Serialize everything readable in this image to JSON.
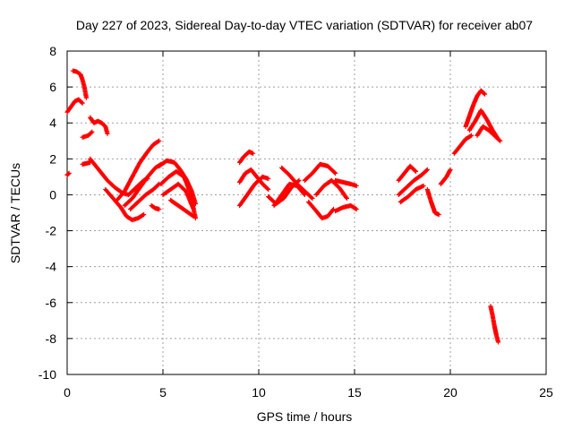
{
  "chart_data": {
    "type": "scatter",
    "title": "Day 227 of 2023, Sidereal Day-to-day VTEC variation (SDTVAR) for receiver ab07",
    "xlabel": "GPS time / hours",
    "ylabel": "SDTVAR / TECUs",
    "xlim": [
      0,
      25
    ],
    "ylim": [
      -10,
      8
    ],
    "xticks": [
      "0",
      "5",
      "10",
      "15",
      "20",
      "25"
    ],
    "yticks": [
      "8",
      "6",
      "4",
      "2",
      "0",
      "-2",
      "-4",
      "-6",
      "-8",
      "-10"
    ],
    "grid": true,
    "marker": "+",
    "color": "#ff0000",
    "series": [
      {
        "name": "s1",
        "x": [
          0.0,
          0.2,
          0.4,
          0.6,
          0.8
        ],
        "y": [
          4.6,
          4.9,
          5.2,
          5.3,
          5.1
        ]
      },
      {
        "name": "s2",
        "x": [
          0.3,
          0.5,
          0.7,
          0.8,
          0.9,
          1.0
        ],
        "y": [
          6.9,
          6.85,
          6.7,
          6.4,
          6.0,
          5.4
        ]
      },
      {
        "name": "s3",
        "x": [
          1.2,
          1.4,
          1.6,
          1.8,
          2.0,
          2.1
        ],
        "y": [
          4.3,
          4.0,
          4.1,
          4.0,
          3.8,
          3.4
        ]
      },
      {
        "name": "s4",
        "x": [
          0.8,
          1.1,
          1.3
        ],
        "y": [
          3.2,
          3.3,
          3.5
        ]
      },
      {
        "name": "s5",
        "x": [
          0.0,
          0.1
        ],
        "y": [
          1.1,
          1.2
        ]
      },
      {
        "name": "s6",
        "x": [
          0.8,
          1.0,
          1.2
        ],
        "y": [
          1.7,
          1.75,
          1.8
        ]
      },
      {
        "name": "s7",
        "x": [
          1.2,
          1.5,
          1.8,
          2.1,
          2.5,
          2.9,
          3.2,
          3.5,
          3.8,
          4.0,
          4.2
        ],
        "y": [
          2.0,
          1.6,
          1.2,
          0.8,
          0.4,
          0.1,
          0.0,
          0.3,
          0.6,
          0.8,
          0.9
        ]
      },
      {
        "name": "s8",
        "x": [
          2.0,
          2.4,
          2.8,
          3.1,
          3.4,
          3.7,
          4.0
        ],
        "y": [
          0.3,
          -0.2,
          -0.7,
          -1.2,
          -1.4,
          -1.3,
          -1.1
        ]
      },
      {
        "name": "s9",
        "x": [
          2.6,
          3.0,
          3.4,
          3.8,
          4.2,
          4.5,
          4.8
        ],
        "y": [
          -0.3,
          0.2,
          1.0,
          1.8,
          2.4,
          2.8,
          3.0
        ]
      },
      {
        "name": "s10",
        "x": [
          3.0,
          3.4,
          3.8,
          4.2,
          4.6,
          4.9
        ],
        "y": [
          -0.6,
          -0.2,
          0.4,
          1.0,
          1.5,
          1.7
        ]
      },
      {
        "name": "s11",
        "x": [
          3.3,
          3.7,
          4.1,
          4.5,
          4.8
        ],
        "y": [
          -0.8,
          -0.4,
          0.0,
          0.3,
          0.6
        ]
      },
      {
        "name": "s12",
        "x": [
          4.4,
          4.6,
          4.8
        ],
        "y": [
          -0.6,
          -0.75,
          -0.8
        ]
      },
      {
        "name": "s13",
        "x": [
          4.8,
          5.2,
          5.6,
          5.9,
          6.2,
          6.5,
          6.7
        ],
        "y": [
          1.6,
          1.9,
          1.8,
          1.4,
          0.9,
          0.2,
          -0.5
        ]
      },
      {
        "name": "s14",
        "x": [
          4.9,
          5.3,
          5.7,
          6.1,
          6.4,
          6.7
        ],
        "y": [
          0.6,
          1.0,
          1.3,
          1.0,
          0.2,
          -1.3
        ]
      },
      {
        "name": "s15",
        "x": [
          5.0,
          5.4,
          5.8,
          6.2,
          6.6
        ],
        "y": [
          0.0,
          0.3,
          0.6,
          0.2,
          -0.8
        ]
      },
      {
        "name": "s16",
        "x": [
          5.4,
          5.8,
          6.2,
          6.6
        ],
        "y": [
          -0.3,
          -0.6,
          -0.9,
          -1.2
        ]
      },
      {
        "name": "s17",
        "x": [
          9.0,
          9.2,
          9.5,
          9.7
        ],
        "y": [
          1.8,
          2.1,
          2.4,
          2.3
        ]
      },
      {
        "name": "s18",
        "x": [
          9.0,
          9.3,
          9.6,
          9.9,
          10.2,
          10.5
        ],
        "y": [
          0.7,
          1.2,
          1.4,
          1.0,
          0.6,
          0.3
        ]
      },
      {
        "name": "s19",
        "x": [
          9.0,
          9.4,
          9.8,
          10.2,
          10.5
        ],
        "y": [
          -0.6,
          0.0,
          0.6,
          1.0,
          0.9
        ]
      },
      {
        "name": "s20",
        "x": [
          10.5,
          10.9,
          11.3,
          11.7,
          12.1
        ],
        "y": [
          -0.1,
          -0.5,
          -0.2,
          0.4,
          0.8
        ]
      },
      {
        "name": "s21",
        "x": [
          10.8,
          11.2,
          11.6,
          12.0,
          12.4
        ],
        "y": [
          -0.6,
          0.0,
          0.6,
          0.5,
          0.0
        ]
      },
      {
        "name": "s22",
        "x": [
          11.2,
          11.6,
          12.0,
          12.4,
          12.8
        ],
        "y": [
          1.5,
          1.1,
          0.6,
          0.2,
          -0.2
        ]
      },
      {
        "name": "s23",
        "x": [
          12.6,
          13.0,
          13.3,
          13.6,
          13.9
        ],
        "y": [
          -0.4,
          -0.9,
          -1.3,
          -1.2,
          -0.8
        ]
      },
      {
        "name": "s24",
        "x": [
          12.4,
          12.8,
          13.2,
          13.6,
          14.0
        ],
        "y": [
          0.8,
          1.2,
          1.7,
          1.6,
          1.2
        ]
      },
      {
        "name": "s25",
        "x": [
          13.0,
          13.4,
          13.8,
          14.2,
          14.6
        ],
        "y": [
          0.0,
          0.5,
          0.8,
          0.4,
          -0.2
        ]
      },
      {
        "name": "s26",
        "x": [
          14.0,
          14.4,
          14.8,
          15.1
        ],
        "y": [
          -0.9,
          -0.7,
          -0.6,
          -0.8
        ]
      },
      {
        "name": "s27",
        "x": [
          14.0,
          14.4,
          14.8,
          15.1
        ],
        "y": [
          0.8,
          0.7,
          0.6,
          0.5
        ]
      },
      {
        "name": "s28",
        "x": [
          17.3,
          17.6,
          17.9,
          18.2
        ],
        "y": [
          0.8,
          1.2,
          1.6,
          1.3
        ]
      },
      {
        "name": "s29",
        "x": [
          17.3,
          17.7,
          18.1,
          18.5,
          18.8
        ],
        "y": [
          0.0,
          0.4,
          0.8,
          1.1,
          1.4
        ]
      },
      {
        "name": "s30",
        "x": [
          17.4,
          17.8,
          18.2,
          18.6
        ],
        "y": [
          -0.4,
          -0.1,
          0.3,
          0.5
        ]
      },
      {
        "name": "s31",
        "x": [
          18.8,
          19.0,
          19.2,
          19.4
        ],
        "y": [
          0.3,
          -0.4,
          -1.0,
          -1.1
        ]
      },
      {
        "name": "s32",
        "x": [
          19.5,
          19.8,
          20.0
        ],
        "y": [
          0.6,
          1.0,
          1.4
        ]
      },
      {
        "name": "s33",
        "x": [
          20.2,
          20.5,
          20.8,
          21.1
        ],
        "y": [
          2.3,
          2.7,
          3.1,
          3.3
        ]
      },
      {
        "name": "s34",
        "x": [
          20.8,
          21.0,
          21.2,
          21.4,
          21.6,
          21.8
        ],
        "y": [
          3.8,
          4.4,
          5.0,
          5.5,
          5.8,
          5.6
        ]
      },
      {
        "name": "s35",
        "x": [
          21.0,
          21.3,
          21.6,
          21.9,
          22.2,
          22.5
        ],
        "y": [
          3.6,
          4.1,
          4.7,
          4.2,
          3.6,
          3.1
        ]
      },
      {
        "name": "s36",
        "x": [
          21.4,
          21.7,
          22.0,
          22.3,
          22.6
        ],
        "y": [
          3.3,
          3.8,
          3.6,
          3.3,
          3.0
        ]
      },
      {
        "name": "s37",
        "x": [
          22.1,
          22.2,
          22.3,
          22.4,
          22.5
        ],
        "y": [
          -6.2,
          -6.7,
          -7.3,
          -7.8,
          -8.2
        ]
      }
    ]
  }
}
